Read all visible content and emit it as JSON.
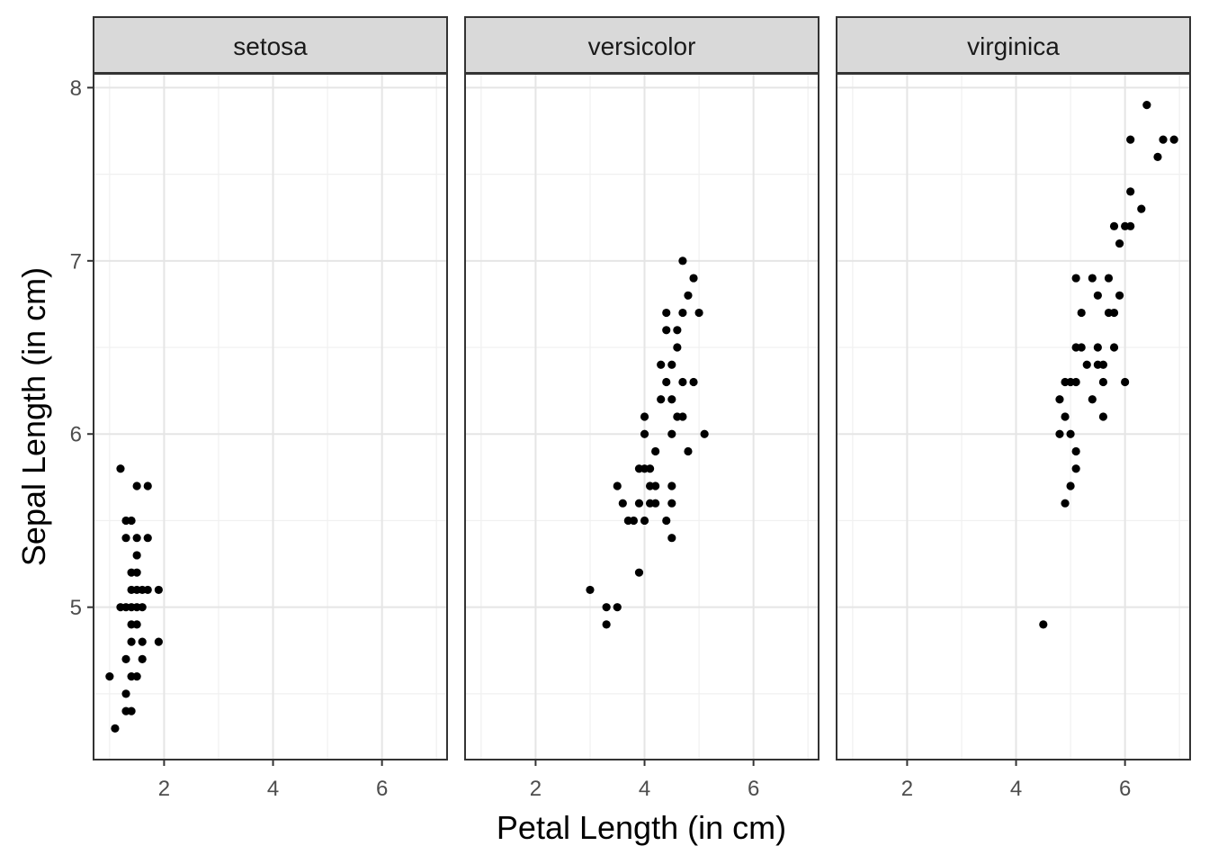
{
  "chart_data": {
    "type": "scatter",
    "xlabel": "Petal Length (in cm)",
    "ylabel": "Sepal Length (in cm)",
    "xlim": [
      0.705,
      7.195
    ],
    "ylim": [
      4.12,
      8.08
    ],
    "x_ticks": [
      2,
      4,
      6
    ],
    "y_ticks": [
      5,
      6,
      7,
      8
    ],
    "grid": true,
    "legend": "none",
    "point_color": "#000000",
    "panels": [
      {
        "label": "setosa",
        "points": [
          [
            1.0,
            4.6
          ],
          [
            1.1,
            4.3
          ],
          [
            1.2,
            5.8
          ],
          [
            1.2,
            5.0
          ],
          [
            1.3,
            5.5
          ],
          [
            1.3,
            5.4
          ],
          [
            1.3,
            5.0
          ],
          [
            1.3,
            4.7
          ],
          [
            1.3,
            4.5
          ],
          [
            1.3,
            4.4
          ],
          [
            1.4,
            5.5
          ],
          [
            1.4,
            5.2
          ],
          [
            1.4,
            5.1
          ],
          [
            1.4,
            5.0
          ],
          [
            1.4,
            4.9
          ],
          [
            1.4,
            4.8
          ],
          [
            1.4,
            4.6
          ],
          [
            1.4,
            4.4
          ],
          [
            1.5,
            5.7
          ],
          [
            1.5,
            5.4
          ],
          [
            1.5,
            5.3
          ],
          [
            1.5,
            5.2
          ],
          [
            1.5,
            5.1
          ],
          [
            1.5,
            5.0
          ],
          [
            1.5,
            4.9
          ],
          [
            1.5,
            4.6
          ],
          [
            1.6,
            5.1
          ],
          [
            1.6,
            5.0
          ],
          [
            1.6,
            4.8
          ],
          [
            1.6,
            4.7
          ],
          [
            1.7,
            5.7
          ],
          [
            1.7,
            5.4
          ],
          [
            1.7,
            5.1
          ],
          [
            1.9,
            5.1
          ],
          [
            1.9,
            4.8
          ]
        ]
      },
      {
        "label": "versicolor",
        "points": [
          [
            3.0,
            5.1
          ],
          [
            3.3,
            5.0
          ],
          [
            3.3,
            4.9
          ],
          [
            3.5,
            5.7
          ],
          [
            3.5,
            5.0
          ],
          [
            3.6,
            5.6
          ],
          [
            3.7,
            5.5
          ],
          [
            3.8,
            5.5
          ],
          [
            3.9,
            5.8
          ],
          [
            3.9,
            5.6
          ],
          [
            3.9,
            5.2
          ],
          [
            4.0,
            6.1
          ],
          [
            4.0,
            6.0
          ],
          [
            4.0,
            5.8
          ],
          [
            4.0,
            5.5
          ],
          [
            4.1,
            5.8
          ],
          [
            4.1,
            5.7
          ],
          [
            4.1,
            5.6
          ],
          [
            4.2,
            5.9
          ],
          [
            4.2,
            5.7
          ],
          [
            4.2,
            5.6
          ],
          [
            4.3,
            6.4
          ],
          [
            4.3,
            6.2
          ],
          [
            4.4,
            6.7
          ],
          [
            4.4,
            6.6
          ],
          [
            4.4,
            6.3
          ],
          [
            4.4,
            5.5
          ],
          [
            4.5,
            6.4
          ],
          [
            4.5,
            6.2
          ],
          [
            4.5,
            6.0
          ],
          [
            4.5,
            5.7
          ],
          [
            4.5,
            5.6
          ],
          [
            4.5,
            5.4
          ],
          [
            4.6,
            6.6
          ],
          [
            4.6,
            6.5
          ],
          [
            4.6,
            6.1
          ],
          [
            4.7,
            7.0
          ],
          [
            4.7,
            6.7
          ],
          [
            4.7,
            6.3
          ],
          [
            4.7,
            6.1
          ],
          [
            4.8,
            6.8
          ],
          [
            4.8,
            5.9
          ],
          [
            4.9,
            6.9
          ],
          [
            4.9,
            6.3
          ],
          [
            5.0,
            6.7
          ],
          [
            5.1,
            6.0
          ]
        ]
      },
      {
        "label": "virginica",
        "points": [
          [
            4.5,
            4.9
          ],
          [
            4.8,
            6.2
          ],
          [
            4.8,
            6.0
          ],
          [
            4.9,
            6.3
          ],
          [
            4.9,
            6.1
          ],
          [
            4.9,
            5.6
          ],
          [
            5.0,
            6.3
          ],
          [
            5.0,
            6.0
          ],
          [
            5.0,
            5.7
          ],
          [
            5.1,
            6.9
          ],
          [
            5.1,
            6.5
          ],
          [
            5.1,
            6.3
          ],
          [
            5.1,
            5.9
          ],
          [
            5.1,
            5.8
          ],
          [
            5.2,
            6.7
          ],
          [
            5.2,
            6.5
          ],
          [
            5.3,
            6.4
          ],
          [
            5.4,
            6.9
          ],
          [
            5.4,
            6.2
          ],
          [
            5.5,
            6.8
          ],
          [
            5.5,
            6.5
          ],
          [
            5.5,
            6.4
          ],
          [
            5.6,
            6.4
          ],
          [
            5.6,
            6.3
          ],
          [
            5.6,
            6.1
          ],
          [
            5.7,
            6.9
          ],
          [
            5.7,
            6.7
          ],
          [
            5.8,
            6.7
          ],
          [
            5.8,
            6.5
          ],
          [
            5.9,
            7.1
          ],
          [
            5.9,
            6.8
          ],
          [
            5.8,
            7.2
          ],
          [
            6.0,
            7.2
          ],
          [
            6.0,
            6.3
          ],
          [
            6.1,
            7.7
          ],
          [
            6.1,
            7.4
          ],
          [
            6.1,
            7.2
          ],
          [
            6.3,
            7.3
          ],
          [
            6.4,
            7.9
          ],
          [
            6.6,
            7.6
          ],
          [
            6.7,
            7.7
          ],
          [
            6.9,
            7.7
          ]
        ]
      }
    ]
  }
}
